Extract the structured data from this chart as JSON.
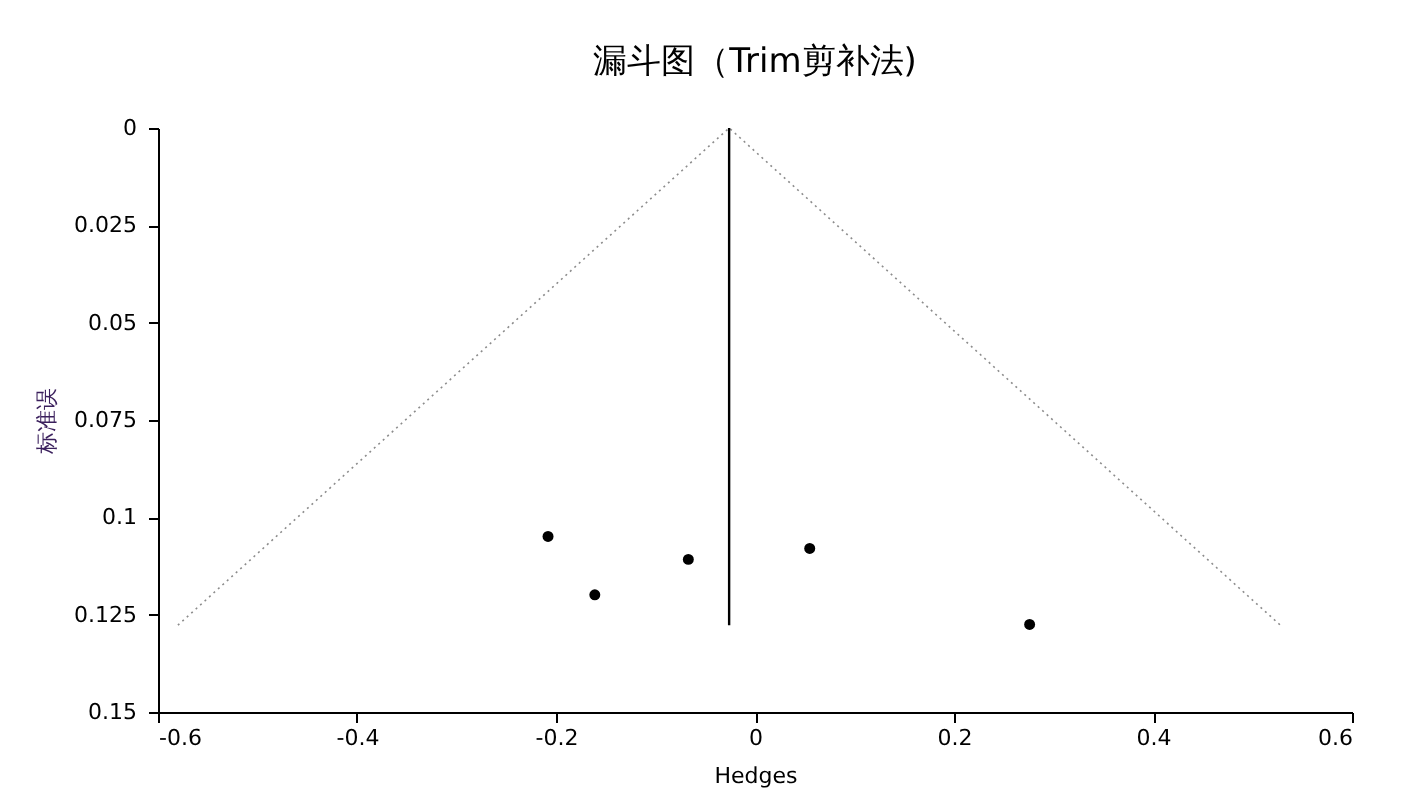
{
  "chart_data": {
    "type": "scatter",
    "title": "漏斗图（Trim剪补法)",
    "xlabel": "Hedges",
    "ylabel": "标准误",
    "xlim": [
      -0.6,
      0.6
    ],
    "xticks": [
      -0.6,
      -0.4,
      -0.2,
      0,
      0.2,
      0.4,
      0.6
    ],
    "ylim": [
      0.15,
      0
    ],
    "yticks": [
      0,
      0.025,
      0.05,
      0.075,
      0.1,
      0.125,
      0.15
    ],
    "grid": false,
    "series": [
      {
        "type": "line",
        "color": "#8c8c8c",
        "line_style": "dotted",
        "marker": "none",
        "x": [
          -0.58,
          -0.026,
          0.528
        ],
        "values": [
          0.1277,
          0,
          0.1277
        ]
      },
      {
        "type": "line",
        "color": "#000000",
        "line_style": "solid",
        "marker": "none",
        "x": [
          -0.026,
          -0.026
        ],
        "values": [
          0,
          0.1277
        ]
      },
      {
        "color": "#000000",
        "marker": "circle",
        "x": [
          -0.208,
          -0.161,
          -0.067,
          0.055,
          0.276
        ],
        "values": [
          0.1049,
          0.1199,
          0.1108,
          0.108,
          0.1275
        ]
      }
    ]
  }
}
